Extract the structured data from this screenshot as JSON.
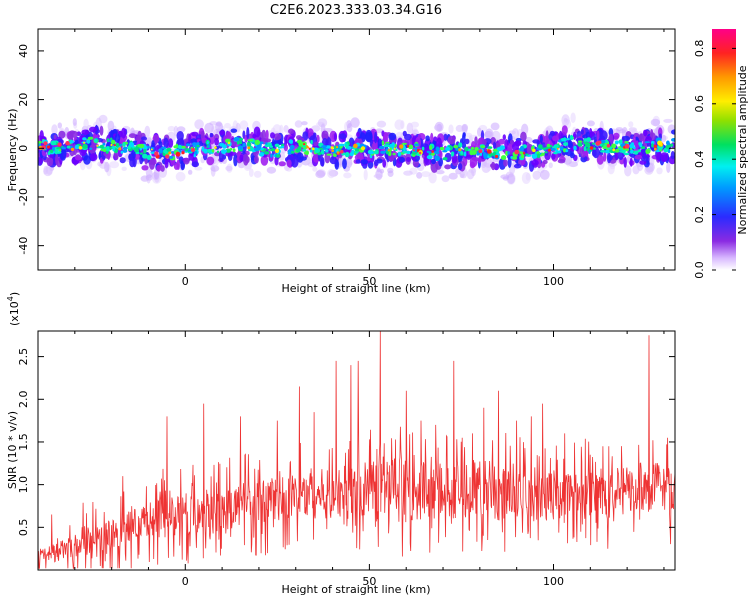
{
  "title": "C2E6.2023.333.03.34.G16",
  "colors": {
    "snr_line": "#ee3333",
    "axis": "#000000"
  },
  "chart_data": [
    {
      "type": "heatmap",
      "xlabel": "Height of straight line (km)",
      "ylabel": "Frequency (Hz)",
      "xlim": [
        -40,
        133
      ],
      "ylim": [
        -50,
        49
      ],
      "xticks": [
        0,
        50,
        100
      ],
      "yticks": [
        -40,
        -20,
        0,
        20,
        40
      ],
      "colorbar": {
        "label": "Normalized spectral amplitude",
        "range": [
          0,
          0.87
        ],
        "ticks": [
          "0.0",
          "0.2",
          "0.4",
          "0.6",
          "0.8"
        ]
      },
      "centerline_hz": [
        [
          -40,
          1
        ],
        [
          -35,
          0
        ],
        [
          -30,
          1
        ],
        [
          -25,
          2
        ],
        [
          -20,
          1
        ],
        [
          -15,
          0
        ],
        [
          -10,
          -2
        ],
        [
          -5,
          -2
        ],
        [
          0,
          -1
        ],
        [
          5,
          0
        ],
        [
          10,
          0
        ],
        [
          15,
          2
        ],
        [
          20,
          0
        ],
        [
          25,
          -1
        ],
        [
          30,
          1
        ],
        [
          35,
          0
        ],
        [
          40,
          -1
        ],
        [
          45,
          0
        ],
        [
          50,
          -1
        ],
        [
          55,
          0
        ],
        [
          60,
          0
        ],
        [
          65,
          -1
        ],
        [
          70,
          -2
        ],
        [
          75,
          -1
        ],
        [
          80,
          -1
        ],
        [
          85,
          -2
        ],
        [
          90,
          -2
        ],
        [
          95,
          -1
        ],
        [
          100,
          0
        ],
        [
          105,
          2
        ],
        [
          110,
          1
        ],
        [
          115,
          1
        ],
        [
          120,
          0
        ],
        [
          125,
          0
        ],
        [
          128,
          1
        ],
        [
          133,
          1
        ]
      ]
    },
    {
      "type": "line",
      "xlabel": "Height of straight line (km)",
      "ylabel": "SNR (10 * v/v)",
      "yscale_label": "(x10^4)",
      "xlim": [
        -40,
        133
      ],
      "ylim": [
        0,
        2.8
      ],
      "xticks": [
        0,
        50,
        100
      ],
      "yticks": [
        0.5,
        1.0,
        1.5,
        2.0,
        2.5
      ],
      "series": [
        {
          "envelope": [
            [
              -40,
              0.05,
              0.25
            ],
            [
              -30,
              0.15,
              0.4
            ],
            [
              -20,
              0.25,
              0.6
            ],
            [
              -10,
              0.35,
              0.8
            ],
            [
              0,
              0.4,
              0.9
            ],
            [
              10,
              0.45,
              1.0
            ],
            [
              20,
              0.55,
              1.05
            ],
            [
              30,
              0.6,
              1.15
            ],
            [
              40,
              0.6,
              1.2
            ],
            [
              50,
              0.6,
              1.3
            ],
            [
              60,
              0.55,
              1.35
            ],
            [
              70,
              0.6,
              1.35
            ],
            [
              80,
              0.6,
              1.3
            ],
            [
              90,
              0.6,
              1.25
            ],
            [
              100,
              0.6,
              1.2
            ],
            [
              110,
              0.6,
              1.2
            ],
            [
              120,
              0.65,
              1.2
            ],
            [
              127,
              0.7,
              1.3
            ],
            [
              133,
              0.7,
              1.2
            ]
          ],
          "peaks": [
            [
              -28,
              0.5
            ],
            [
              -22,
              0.68
            ],
            [
              -17,
              1.1
            ],
            [
              -5,
              1.8
            ],
            [
              5,
              1.95
            ],
            [
              15,
              1.8
            ],
            [
              25,
              1.75
            ],
            [
              31,
              2.15
            ],
            [
              35,
              1.85
            ],
            [
              41,
              2.45
            ],
            [
              45,
              2.4
            ],
            [
              47,
              2.45
            ],
            [
              53,
              2.8
            ],
            [
              60,
              2.1
            ],
            [
              64,
              1.75
            ],
            [
              68,
              1.7
            ],
            [
              73,
              2.45
            ],
            [
              78,
              1.6
            ],
            [
              81,
              1.9
            ],
            [
              85,
              2.1
            ],
            [
              90,
              1.75
            ],
            [
              94,
              1.8
            ],
            [
              97,
              1.95
            ],
            [
              103,
              1.6
            ],
            [
              110,
              1.35
            ],
            [
              115,
              1.45
            ],
            [
              120,
              1.2
            ],
            [
              126,
              2.75
            ],
            [
              131,
              1.55
            ]
          ]
        }
      ]
    }
  ]
}
